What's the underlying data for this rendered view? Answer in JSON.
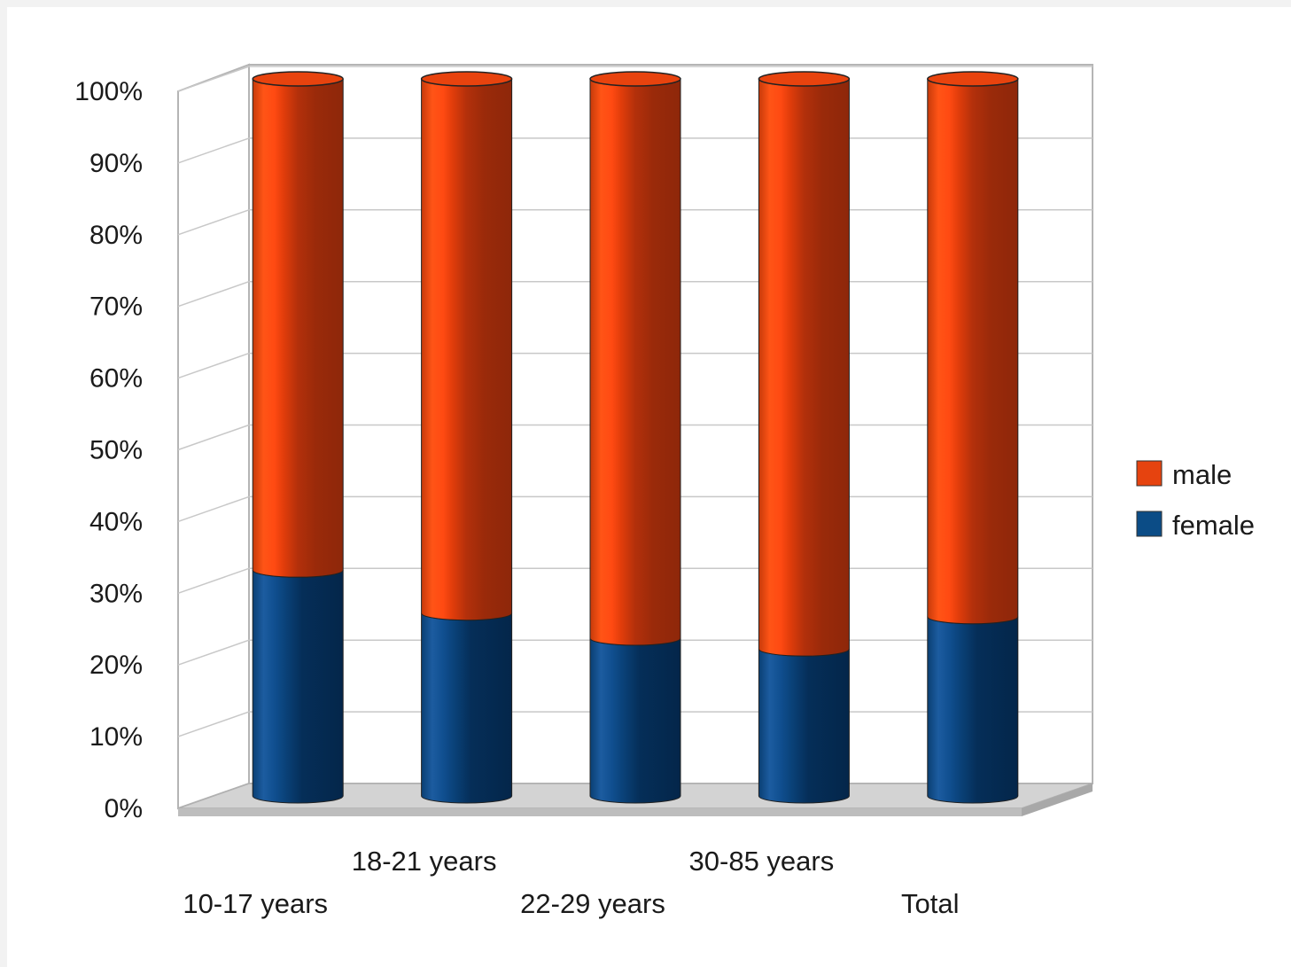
{
  "chart_data": {
    "type": "bar",
    "stacked": true,
    "percent_stacked": true,
    "style": "3d-cylinder",
    "categories": [
      "10-17 years",
      "18-21 years",
      "22-29 years",
      "30-85 years",
      "Total"
    ],
    "series": [
      {
        "name": "female",
        "values": [
          31.5,
          25.5,
          22,
          20.5,
          25
        ],
        "color": "#0b4c86"
      },
      {
        "name": "male",
        "values": [
          68.5,
          74.5,
          78,
          79.5,
          75
        ],
        "color": "#e6430f"
      }
    ],
    "yticks": [
      "0%",
      "10%",
      "20%",
      "30%",
      "40%",
      "50%",
      "60%",
      "70%",
      "80%",
      "90%",
      "100%"
    ],
    "ylim": [
      0,
      100
    ],
    "grid": true,
    "legend": "right",
    "title": "",
    "xlabel": "",
    "ylabel": ""
  }
}
